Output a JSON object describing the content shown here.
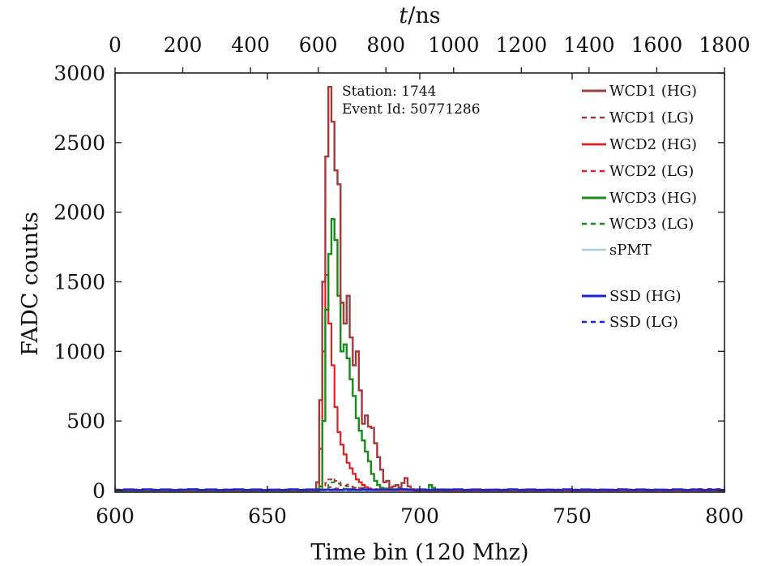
{
  "chart_data": {
    "type": "line",
    "xlabel": "Time bin (120 Mhz)",
    "ylabel": "FADC counts",
    "top_xlabel_var": "t",
    "top_xlabel_unit": "/ns",
    "xlim": [
      600,
      800
    ],
    "ylim": [
      -30,
      3000
    ],
    "x_ticks": [
      "600",
      "650",
      "700",
      "750",
      "800"
    ],
    "y_ticks": [
      "0",
      "500",
      "1000",
      "1500",
      "2000",
      "2500",
      "3000"
    ],
    "top_ticks": [
      "0",
      "200",
      "400",
      "600",
      "800",
      "1000",
      "1200",
      "1400",
      "1600",
      "1800"
    ],
    "annotation": {
      "line1": "Station: 1744",
      "line2": "Event Id: 50771286"
    },
    "legend_position": "top-right",
    "series": [
      {
        "name": "WCD1 (HG)",
        "color": "#a23b3b",
        "dash": "solid",
        "width": 2.4,
        "points": [
          [
            600,
            3
          ],
          [
            665,
            3
          ],
          [
            666,
            60
          ],
          [
            667,
            650
          ],
          [
            668,
            1500
          ],
          [
            669,
            2400
          ],
          [
            670,
            2900
          ],
          [
            671,
            2650
          ],
          [
            672,
            2300
          ],
          [
            673,
            2200
          ],
          [
            674,
            1350
          ],
          [
            675,
            1200
          ],
          [
            676,
            1400
          ],
          [
            677,
            1100
          ],
          [
            678,
            900
          ],
          [
            679,
            1000
          ],
          [
            680,
            720
          ],
          [
            681,
            480
          ],
          [
            682,
            540
          ],
          [
            683,
            460
          ],
          [
            684,
            450
          ],
          [
            685,
            340
          ],
          [
            686,
            240
          ],
          [
            687,
            150
          ],
          [
            688,
            60
          ],
          [
            689,
            70
          ],
          [
            690,
            20
          ],
          [
            691,
            30
          ],
          [
            692,
            40
          ],
          [
            693,
            20
          ],
          [
            694,
            55
          ],
          [
            695,
            90
          ],
          [
            696,
            30
          ],
          [
            697,
            10
          ],
          [
            698,
            0
          ],
          [
            800,
            0
          ]
        ]
      },
      {
        "name": "WCD1 (LG)",
        "color": "#a23b3b",
        "dash": "6,5",
        "width": 2,
        "points": [
          [
            600,
            5
          ],
          [
            665,
            5
          ],
          [
            667,
            10
          ],
          [
            668,
            30
          ],
          [
            669,
            55
          ],
          [
            670,
            80
          ],
          [
            671,
            90
          ],
          [
            672,
            70
          ],
          [
            673,
            60
          ],
          [
            674,
            40
          ],
          [
            675,
            35
          ],
          [
            676,
            42
          ],
          [
            677,
            30
          ],
          [
            678,
            22
          ],
          [
            679,
            25
          ],
          [
            680,
            18
          ],
          [
            683,
            12
          ],
          [
            686,
            8
          ],
          [
            690,
            6
          ],
          [
            695,
            5
          ],
          [
            800,
            5
          ]
        ]
      },
      {
        "name": "WCD2 (HG)",
        "color": "#e21f1f",
        "dash": "solid",
        "width": 2.2,
        "points": [
          [
            600,
            0
          ],
          [
            665,
            0
          ],
          [
            666,
            10
          ],
          [
            667,
            300
          ],
          [
            668,
            1000
          ],
          [
            669,
            1550
          ],
          [
            670,
            1200
          ],
          [
            671,
            900
          ],
          [
            672,
            600
          ],
          [
            673,
            420
          ],
          [
            674,
            330
          ],
          [
            675,
            260
          ],
          [
            676,
            200
          ],
          [
            677,
            160
          ],
          [
            678,
            120
          ],
          [
            679,
            80
          ],
          [
            680,
            60
          ],
          [
            681,
            40
          ],
          [
            682,
            25
          ],
          [
            683,
            15
          ],
          [
            684,
            8
          ],
          [
            685,
            3
          ],
          [
            800,
            3
          ]
        ]
      },
      {
        "name": "WCD2 (LG)",
        "color": "#e21f1f",
        "dash": "6,5",
        "width": 2,
        "points": [
          [
            600,
            8
          ],
          [
            668,
            8
          ],
          [
            670,
            25
          ],
          [
            672,
            15
          ],
          [
            675,
            10
          ],
          [
            680,
            8
          ],
          [
            740,
            8
          ],
          [
            790,
            12
          ],
          [
            800,
            8
          ]
        ]
      },
      {
        "name": "WCD3 (HG)",
        "color": "#1a8a1a",
        "dash": "solid",
        "width": 2.4,
        "points": [
          [
            600,
            0
          ],
          [
            666,
            0
          ],
          [
            667,
            30
          ],
          [
            668,
            500
          ],
          [
            669,
            1300
          ],
          [
            670,
            1700
          ],
          [
            671,
            1950
          ],
          [
            672,
            1800
          ],
          [
            673,
            1400
          ],
          [
            674,
            1000
          ],
          [
            675,
            1050
          ],
          [
            676,
            950
          ],
          [
            677,
            800
          ],
          [
            678,
            680
          ],
          [
            679,
            520
          ],
          [
            680,
            430
          ],
          [
            681,
            360
          ],
          [
            682,
            280
          ],
          [
            683,
            210
          ],
          [
            684,
            120
          ],
          [
            685,
            70
          ],
          [
            686,
            40
          ],
          [
            687,
            20
          ],
          [
            688,
            15
          ],
          [
            690,
            10
          ],
          [
            695,
            8
          ],
          [
            698,
            5
          ],
          [
            700,
            5
          ],
          [
            703,
            40
          ],
          [
            704,
            20
          ],
          [
            705,
            8
          ],
          [
            710,
            5
          ],
          [
            800,
            5
          ]
        ]
      },
      {
        "name": "WCD3 (LG)",
        "color": "#1a8a1a",
        "dash": "6,5",
        "width": 2,
        "points": [
          [
            600,
            6
          ],
          [
            668,
            6
          ],
          [
            670,
            40
          ],
          [
            671,
            60
          ],
          [
            672,
            50
          ],
          [
            674,
            35
          ],
          [
            676,
            30
          ],
          [
            678,
            20
          ],
          [
            682,
            10
          ],
          [
            686,
            6
          ],
          [
            800,
            6
          ]
        ]
      },
      {
        "name": "sPMT",
        "color": "#a9cde3",
        "dash": "solid",
        "width": 2,
        "points": [
          [
            600,
            2
          ],
          [
            800,
            2
          ]
        ]
      },
      {
        "name": "SSD (HG)",
        "color": "#1424d6",
        "dash": "solid",
        "width": 2.4,
        "points": [
          [
            600,
            5
          ],
          [
            603,
            8
          ],
          [
            606,
            4
          ],
          [
            609,
            9
          ],
          [
            612,
            5
          ],
          [
            615,
            8
          ],
          [
            618,
            4
          ],
          [
            621,
            7
          ],
          [
            624,
            10
          ],
          [
            627,
            5
          ],
          [
            630,
            8
          ],
          [
            633,
            4
          ],
          [
            636,
            7
          ],
          [
            639,
            9
          ],
          [
            642,
            5
          ],
          [
            645,
            8
          ],
          [
            648,
            4
          ],
          [
            651,
            7
          ],
          [
            654,
            5
          ],
          [
            657,
            9
          ],
          [
            660,
            5
          ],
          [
            663,
            8
          ],
          [
            666,
            4
          ],
          [
            669,
            7
          ],
          [
            672,
            5
          ],
          [
            675,
            9
          ],
          [
            678,
            5
          ],
          [
            681,
            8
          ],
          [
            684,
            4
          ],
          [
            687,
            7
          ],
          [
            690,
            5
          ],
          [
            693,
            9
          ],
          [
            696,
            5
          ],
          [
            699,
            8
          ],
          [
            702,
            4
          ],
          [
            705,
            7
          ],
          [
            708,
            5
          ],
          [
            711,
            9
          ],
          [
            714,
            5
          ],
          [
            717,
            8
          ],
          [
            720,
            4
          ],
          [
            723,
            7
          ],
          [
            726,
            5
          ],
          [
            729,
            9
          ],
          [
            732,
            5
          ],
          [
            735,
            8
          ],
          [
            738,
            4
          ],
          [
            741,
            7
          ],
          [
            744,
            5
          ],
          [
            747,
            9
          ],
          [
            750,
            5
          ],
          [
            753,
            8
          ],
          [
            756,
            4
          ],
          [
            759,
            7
          ],
          [
            762,
            5
          ],
          [
            765,
            9
          ],
          [
            768,
            5
          ],
          [
            771,
            8
          ],
          [
            774,
            4
          ],
          [
            777,
            7
          ],
          [
            780,
            5
          ],
          [
            783,
            9
          ],
          [
            786,
            5
          ],
          [
            789,
            8
          ],
          [
            792,
            4
          ],
          [
            795,
            7
          ],
          [
            798,
            5
          ],
          [
            800,
            6
          ]
        ]
      },
      {
        "name": "SSD (LG)",
        "color": "#1424d6",
        "dash": "6,5",
        "width": 2,
        "points": [
          [
            600,
            3
          ],
          [
            800,
            3
          ]
        ]
      }
    ]
  }
}
